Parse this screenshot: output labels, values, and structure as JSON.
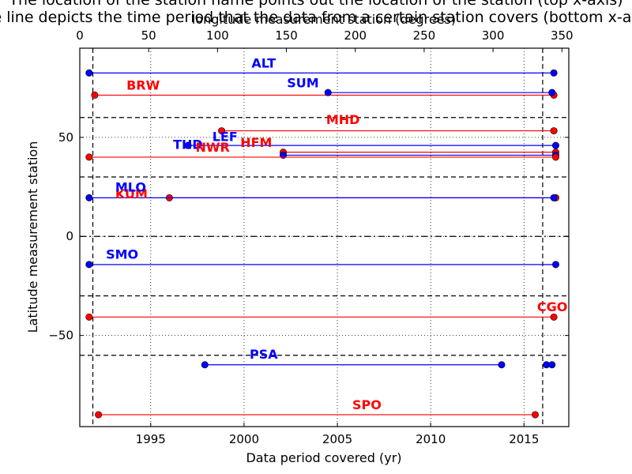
{
  "chart_data": {
    "type": "line",
    "title_lines": [
      "The location of the station name points out the location of the station (top x-axis)",
      "The line depicts the time period that the data from a certain station covers (bottom x-axis)"
    ],
    "xlabel": "Data period covered (yr)",
    "ylabel": "Latitude measurement station",
    "x2label": "longitude measurement station (degrees)",
    "xlim": [
      1991.2,
      2017.4
    ],
    "ylim": [
      -96,
      95
    ],
    "x2lim": [
      0,
      355
    ],
    "xticks": [
      1995,
      2000,
      2005,
      2010,
      2015
    ],
    "yticks": [
      -50,
      0,
      50
    ],
    "x2ticks": [
      0,
      50,
      100,
      150,
      200,
      250,
      300,
      350
    ],
    "grid": "dotted",
    "dashed_vertical_years": [
      1991.9,
      2016.0
    ],
    "dashed_horizontal_latitudes": [
      60,
      30,
      -30,
      -60
    ],
    "dashdot_horizontal_latitudes": [
      0
    ],
    "colors": {
      "blue": "#0000ff",
      "red": "#ff0000"
    },
    "stations": [
      {
        "name": "ALT",
        "color": "blue",
        "latitude": 82.5,
        "start": 1991.7,
        "end": 2016.6,
        "label_year": 2000.4
      },
      {
        "name": "BRW",
        "color": "red",
        "latitude": 71.3,
        "start": 1992.0,
        "end": 2016.6,
        "label_year": 1993.7
      },
      {
        "name": "SUM",
        "color": "blue",
        "latitude": 72.6,
        "start": 2004.5,
        "end": 2016.5,
        "label_year": 2002.3,
        "label_latitude": 74
      },
      {
        "name": "MHD",
        "color": "red",
        "latitude": 53.3,
        "start": 1998.8,
        "end": 2016.6,
        "label_year": 2004.4,
        "label_latitude": 55.5
      },
      {
        "name": "LEF",
        "color": "blue",
        "latitude": 45.9,
        "start": 1997.0,
        "end": 2016.7,
        "label_year": 1998.3,
        "label_latitude": 47
      },
      {
        "name": "HFM",
        "color": "red",
        "latitude": 42.5,
        "start": 2002.1,
        "end": 2016.7,
        "label_year": 1999.8,
        "label_latitude": 44
      },
      {
        "name": "THD",
        "color": "blue",
        "latitude": 41.0,
        "start": 2002.1,
        "end": 2016.7,
        "label_year": 1996.2,
        "label_latitude": 43
      },
      {
        "name": "NWR",
        "color": "red",
        "latitude": 40.0,
        "start": 1991.7,
        "end": 2016.7,
        "label_year": 1997.4,
        "label_latitude": 41.5
      },
      {
        "name": "KUM",
        "color": "red",
        "latitude": 19.5,
        "start": 1996.0,
        "end": 2016.7,
        "label_year": 1993.1,
        "label_latitude": 18
      },
      {
        "name": "MLO",
        "color": "blue",
        "latitude": 19.5,
        "start": 1991.7,
        "end": 2016.6,
        "label_year": 1993.1,
        "label_latitude": 21.5
      },
      {
        "name": "SMO",
        "color": "blue",
        "latitude": -14.2,
        "start": 1991.7,
        "end": 2016.7,
        "label_year": 1992.6,
        "label_latitude": -12.5
      },
      {
        "name": "CGO",
        "color": "red",
        "latitude": -40.7,
        "start": 1991.7,
        "end": 2016.6,
        "label_year": 2015.7,
        "label_latitude": -39
      },
      {
        "name": "PSA",
        "color": "blue",
        "latitude": -64.8,
        "start": 1997.9,
        "end": 2013.8,
        "label_year": 2000.3,
        "label_latitude": -63
      },
      {
        "name": "",
        "color": "blue",
        "latitude": -64.8,
        "start": 2016.2,
        "end": 2016.5
      },
      {
        "name": "SPO",
        "color": "red",
        "latitude": -90.0,
        "start": 1992.2,
        "end": 2015.6,
        "label_year": 2005.8,
        "label_latitude": -88.5
      }
    ]
  }
}
